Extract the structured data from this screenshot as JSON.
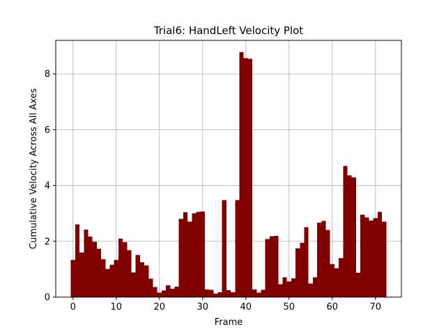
{
  "chart_data": {
    "type": "bar",
    "title": "Trial6: HandLeft Velocity Plot",
    "xlabel": "Frame",
    "ylabel": "Cumulative Velocity Across All Axes",
    "x": [
      0,
      1,
      2,
      3,
      4,
      5,
      6,
      7,
      8,
      9,
      10,
      11,
      12,
      13,
      14,
      15,
      16,
      17,
      18,
      19,
      20,
      21,
      22,
      23,
      24,
      25,
      26,
      27,
      28,
      29,
      30,
      31,
      32,
      33,
      34,
      35,
      36,
      37,
      38,
      39,
      40,
      41,
      42,
      43,
      44,
      45,
      46,
      47,
      48,
      49,
      50,
      51,
      52,
      53,
      54,
      55,
      56,
      57,
      58,
      59,
      60,
      61,
      62,
      63,
      64,
      65,
      66,
      67,
      68,
      69,
      70,
      71,
      72
    ],
    "values": [
      1.33,
      2.6,
      1.6,
      2.42,
      2.17,
      1.98,
      1.73,
      1.36,
      1.01,
      1.16,
      1.33,
      2.1,
      1.97,
      1.68,
      0.88,
      1.51,
      1.25,
      1.14,
      0.66,
      0.36,
      0.16,
      0.24,
      0.42,
      0.3,
      0.38,
      2.8,
      3.04,
      2.71,
      3.0,
      3.05,
      3.07,
      0.28,
      0.26,
      0.12,
      0.17,
      3.48,
      0.25,
      0.17,
      3.48,
      8.78,
      8.57,
      8.54,
      0.28,
      0.16,
      0.26,
      2.08,
      2.18,
      2.2,
      0.46,
      0.71,
      0.56,
      0.67,
      1.75,
      1.95,
      2.5,
      0.49,
      0.71,
      2.67,
      2.73,
      2.41,
      1.18,
      1.03,
      1.4,
      4.7,
      4.36,
      4.29,
      0.87,
      2.95,
      2.86,
      2.74,
      2.83,
      3.05,
      2.71
    ],
    "xlim": [
      -4,
      76
    ],
    "ylim": [
      0,
      9.2
    ],
    "xticks": [
      0,
      10,
      20,
      30,
      40,
      50,
      60,
      70
    ],
    "yticks": [
      0,
      2,
      4,
      6,
      8
    ],
    "grid": true,
    "bar_color": "#800000"
  }
}
